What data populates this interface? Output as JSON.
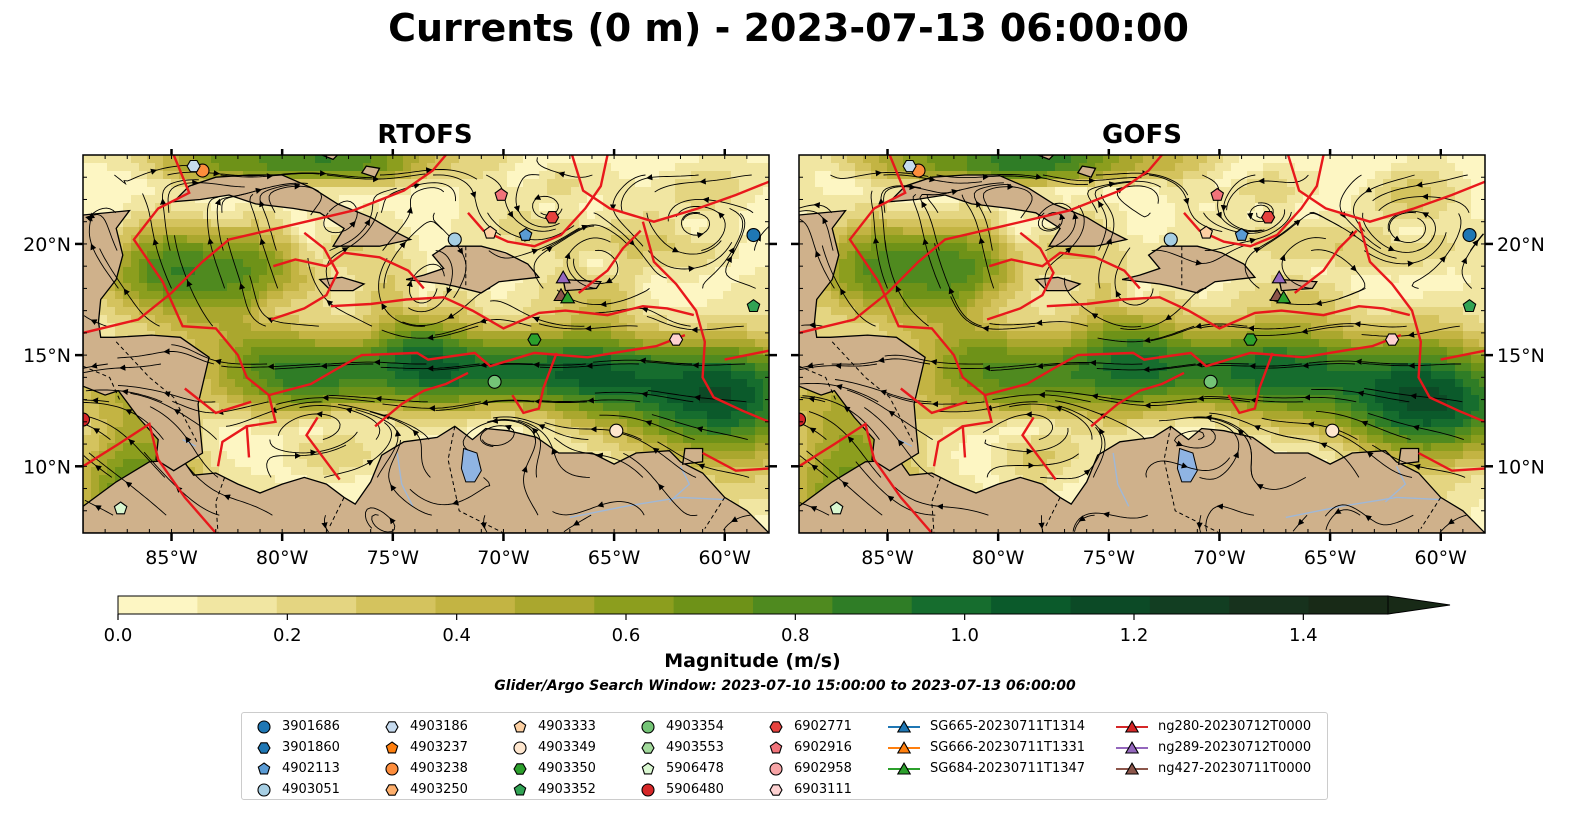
{
  "title": "Currents (0 m) - 2023-07-13 06:00:00",
  "panels": [
    {
      "title": "RTOFS",
      "variant": 0
    },
    {
      "title": "GOFS",
      "variant": 1
    }
  ],
  "map": {
    "lon_range": [
      -89,
      -58
    ],
    "lat_range": [
      7,
      24
    ],
    "lon_ticks": [
      {
        "lon": -85,
        "label": "85°W"
      },
      {
        "lon": -80,
        "label": "80°W"
      },
      {
        "lon": -75,
        "label": "75°W"
      },
      {
        "lon": -70,
        "label": "70°W"
      },
      {
        "lon": -65,
        "label": "65°W"
      },
      {
        "lon": -60,
        "label": "60°W"
      }
    ],
    "lat_ticks": [
      {
        "lat": 20,
        "label": "20°N"
      },
      {
        "lat": 15,
        "label": "15°N"
      },
      {
        "lat": 10,
        "label": "10°N"
      }
    ],
    "colors": {
      "land": "#cfb18b",
      "coast": "#000000",
      "eez": "#e8181c",
      "lakes": "#8fb4e3",
      "rivers": "#9fb8d8",
      "streamlines": "#000000"
    }
  },
  "colorbar": {
    "title": "Magnitude (m/s)",
    "min": 0.0,
    "max": 1.5,
    "step": 0.1,
    "extend": "max",
    "tick_labels": [
      "0.0",
      "0.2",
      "0.4",
      "0.6",
      "0.8",
      "1.0",
      "1.2",
      "1.4"
    ],
    "colors": [
      "#fdf6c3",
      "#f1e6a2",
      "#e4d581",
      "#d4c35e",
      "#c3b443",
      "#aaa72e",
      "#8c9e1e",
      "#6e9218",
      "#4f8a1f",
      "#2f7d26",
      "#166d2e",
      "#0b5a2b",
      "#0c4a26",
      "#123e22",
      "#17321d",
      "#182a17"
    ]
  },
  "search_window": "Glider/Argo Search Window: 2023-07-10 15:00:00 to 2023-07-13 06:00:00",
  "legend": {
    "columns": [
      [
        {
          "label": "3901686",
          "marker": "circle",
          "color": "#1f77b4"
        },
        {
          "label": "3901860",
          "marker": "hexagon",
          "color": "#1f77b4"
        },
        {
          "label": "4902113",
          "marker": "pentagon",
          "color": "#5a9bd4"
        },
        {
          "label": "4903051",
          "marker": "circle",
          "color": "#a6cee3"
        }
      ],
      [
        {
          "label": "4903186",
          "marker": "hexagon",
          "color": "#c6dbef"
        },
        {
          "label": "4903237",
          "marker": "pentagon",
          "color": "#ff7f0e"
        },
        {
          "label": "4903238",
          "marker": "circle",
          "color": "#fd8d3c"
        },
        {
          "label": "4903250",
          "marker": "hexagon",
          "color": "#fdae6b"
        }
      ],
      [
        {
          "label": "4903333",
          "marker": "pentagon",
          "color": "#fdd0a2"
        },
        {
          "label": "4903349",
          "marker": "circle",
          "color": "#fee6ce"
        },
        {
          "label": "4903350",
          "marker": "hexagon",
          "color": "#2ca02c"
        },
        {
          "label": "4903352",
          "marker": "pentagon",
          "color": "#31a354"
        }
      ],
      [
        {
          "label": "4903354",
          "marker": "circle",
          "color": "#74c476"
        },
        {
          "label": "4903553",
          "marker": "hexagon",
          "color": "#a1d99b"
        },
        {
          "label": "5906478",
          "marker": "pentagon",
          "color": "#d9f7d0"
        },
        {
          "label": "5906480",
          "marker": "circle",
          "color": "#d62728"
        }
      ],
      [
        {
          "label": "6902771",
          "marker": "hexagon",
          "color": "#e6423e"
        },
        {
          "label": "6902916",
          "marker": "pentagon",
          "color": "#f1737a"
        },
        {
          "label": "6902958",
          "marker": "circle",
          "color": "#f7a4a6"
        },
        {
          "label": "6903111",
          "marker": "hexagon",
          "color": "#fdd1d1"
        }
      ],
      [
        {
          "label": "SG665-20230711T1314",
          "marker": "triangle",
          "color": "#1f77b4"
        },
        {
          "label": "SG666-20230711T1331",
          "marker": "triangle",
          "color": "#ff7f0e"
        },
        {
          "label": "SG684-20230711T1347",
          "marker": "triangle",
          "color": "#2ca02c"
        }
      ],
      [
        {
          "label": "ng280-20230712T0000",
          "marker": "triangle",
          "color": "#d62728"
        },
        {
          "label": "ng289-20230712T0000",
          "marker": "triangle",
          "color": "#9467bd"
        },
        {
          "label": "ng427-20230711T0000",
          "marker": "triangle",
          "color": "#8c564b"
        }
      ]
    ]
  },
  "platforms": [
    {
      "id": "3901686",
      "lon": -58.7,
      "lat": 20.4
    },
    {
      "id": "4903238",
      "lon": -83.6,
      "lat": 23.3
    },
    {
      "id": "4903186",
      "lon": -84.0,
      "lat": 23.5
    },
    {
      "id": "4903051",
      "lon": -72.2,
      "lat": 20.2
    },
    {
      "id": "4903333",
      "lon": -70.6,
      "lat": 20.5
    },
    {
      "id": "4902113",
      "lon": -69.0,
      "lat": 20.4
    },
    {
      "id": "6902916",
      "lon": -70.1,
      "lat": 22.2
    },
    {
      "id": "6902771",
      "lon": -67.8,
      "lat": 21.2
    },
    {
      "id": "ng289-20230712T0000",
      "lon": -67.3,
      "lat": 18.5
    },
    {
      "id": "ng427-20230711T0000",
      "lon": -67.4,
      "lat": 17.7
    },
    {
      "id": "SG684-20230711T1347",
      "lon": -67.1,
      "lat": 17.6
    },
    {
      "id": "4903352",
      "lon": -58.7,
      "lat": 17.2
    },
    {
      "id": "6903111",
      "lon": -62.2,
      "lat": 15.7
    },
    {
      "id": "4903350",
      "lon": -68.6,
      "lat": 15.7
    },
    {
      "id": "4903354",
      "lon": -70.4,
      "lat": 13.8
    },
    {
      "id": "4903349",
      "lon": -64.9,
      "lat": 11.6
    },
    {
      "id": "5906480",
      "lon": -89.0,
      "lat": 12.1
    },
    {
      "id": "5906478",
      "lon": -87.3,
      "lat": 8.1
    }
  ]
}
